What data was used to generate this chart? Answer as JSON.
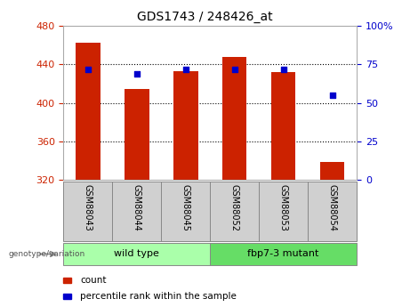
{
  "title": "GDS1743 / 248426_at",
  "categories": [
    "GSM88043",
    "GSM88044",
    "GSM88045",
    "GSM88052",
    "GSM88053",
    "GSM88054"
  ],
  "bar_values": [
    463,
    414,
    433,
    448,
    432,
    338
  ],
  "percentile_values": [
    72,
    69,
    72,
    72,
    72,
    55
  ],
  "y_min": 320,
  "y_max": 480,
  "y_ticks": [
    320,
    360,
    400,
    440,
    480
  ],
  "y2_ticks": [
    0,
    25,
    50,
    75,
    100
  ],
  "bar_color": "#cc2200",
  "dot_color": "#0000cc",
  "axis_color_left": "#cc2200",
  "axis_color_right": "#0000cc",
  "legend_count": "count",
  "legend_percentile": "percentile rank within the sample",
  "wt_color": "#aaffaa",
  "mut_color": "#66dd66",
  "tick_bg_color": "#d0d0d0",
  "tick_border_color": "#888888"
}
